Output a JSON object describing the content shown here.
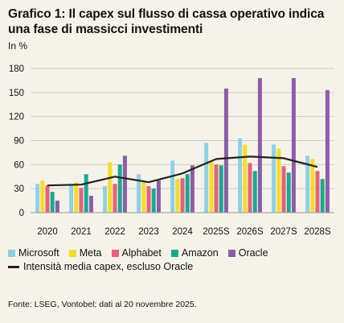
{
  "title": "Grafico 1: Il capex sul flusso di cassa operativo indica una fase di massicci investimenti",
  "unit": "In %",
  "source": "Fonte: LSEG, Vontobel; dati al 20 novembre 2025.",
  "colors": {
    "background": "#f5f3e9",
    "Microsoft": "#8fd0e6",
    "Meta": "#f5dc2a",
    "Alphabet": "#e8607a",
    "Amazon": "#1ba891",
    "Oracle": "#8b5ea8",
    "line": "#222222",
    "grid": "#cfcdc2"
  },
  "chart_data": {
    "type": "bar",
    "categories": [
      "2020",
      "2021",
      "2022",
      "2023",
      "2024",
      "2025S",
      "2026S",
      "2027S",
      "2028S"
    ],
    "series": [
      {
        "name": "Microsoft",
        "values": [
          36,
          36,
          33,
          48,
          65,
          87,
          93,
          85,
          71
        ]
      },
      {
        "name": "Meta",
        "values": [
          40,
          38,
          63,
          40,
          42,
          64,
          85,
          80,
          67
        ]
      },
      {
        "name": "Alphabet",
        "values": [
          34,
          31,
          36,
          33,
          43,
          60,
          62,
          58,
          52
        ]
      },
      {
        "name": "Amazon",
        "values": [
          26,
          48,
          60,
          30,
          48,
          59,
          52,
          50,
          42
        ]
      },
      {
        "name": "Oracle",
        "values": [
          15,
          21,
          71,
          40,
          59,
          155,
          168,
          168,
          153
        ]
      }
    ],
    "line": {
      "name": "Intensità media capex, escluso Oracle",
      "values": [
        34,
        35,
        45,
        38,
        49,
        67,
        70,
        68,
        57
      ]
    },
    "yticks": [
      0,
      30,
      60,
      90,
      120,
      150,
      180
    ],
    "ylim": [
      0,
      180
    ],
    "grid": true,
    "legend": "bottom"
  }
}
